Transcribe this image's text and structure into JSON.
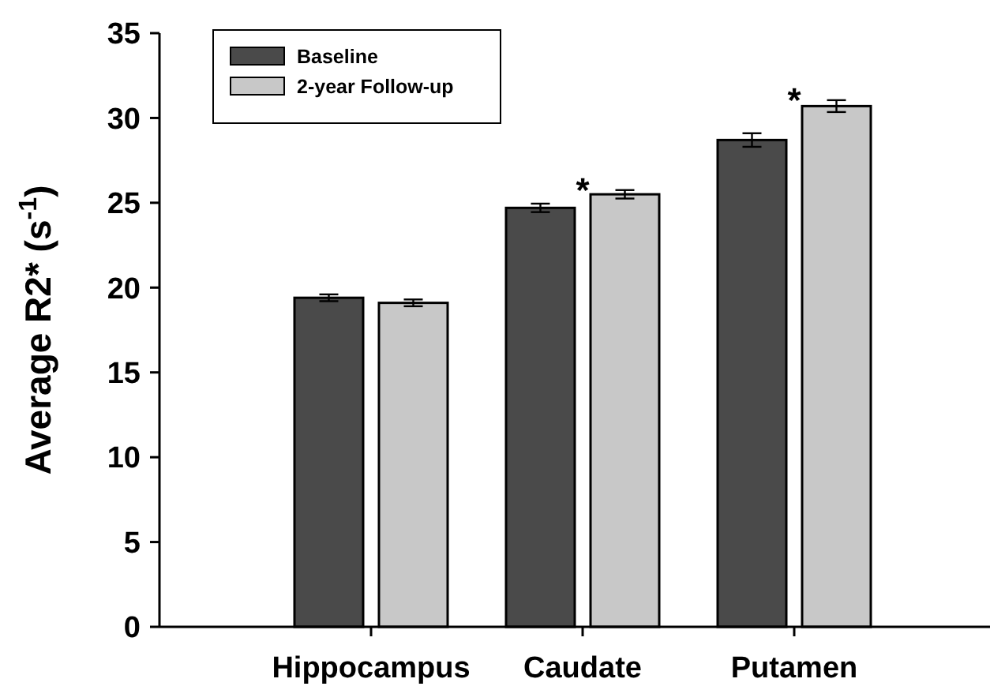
{
  "chart_data": {
    "type": "bar",
    "ylabel": "Average R2* (s$^{-1}$)",
    "categories": [
      "Hippocampus",
      "Caudate",
      "Putamen"
    ],
    "series": [
      {
        "name": "Baseline",
        "color": "#4a4a4a",
        "values": [
          19.4,
          24.7,
          28.7
        ],
        "errors": [
          0.2,
          0.25,
          0.4
        ]
      },
      {
        "name": "2-year Follow-up",
        "color": "#c8c8c8",
        "values": [
          19.1,
          25.5,
          30.7
        ],
        "errors": [
          0.2,
          0.25,
          0.35
        ]
      }
    ],
    "ylim": [
      0,
      35
    ],
    "yticks": [
      0,
      5,
      10,
      15,
      20,
      25,
      30,
      35
    ],
    "grid": false,
    "legend": "top left",
    "annotations": [
      "*",
      "*"
    ]
  }
}
